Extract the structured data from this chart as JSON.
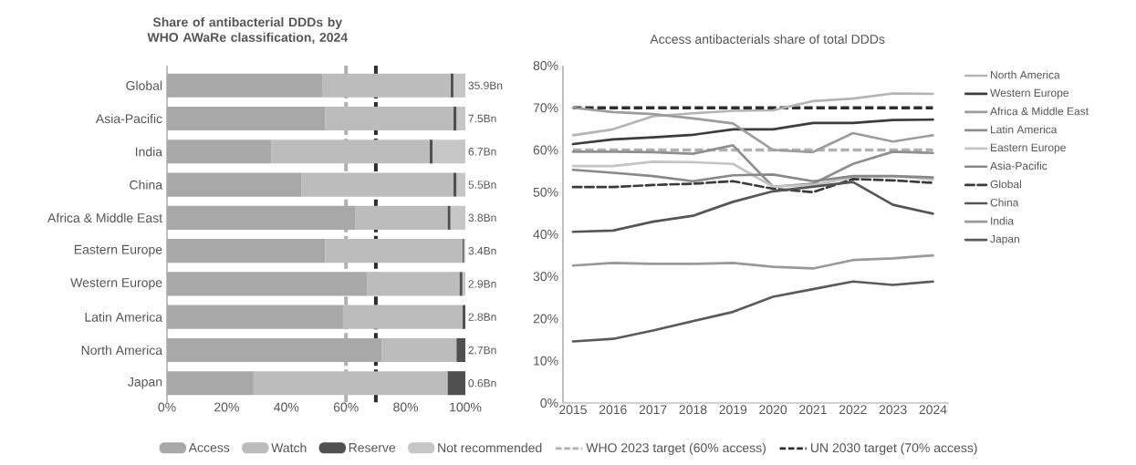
{
  "chart_data": [
    {
      "type": "bar",
      "orientation": "horizontal",
      "stacked": true,
      "title": "Share of antibacterial DDDs by WHO AWaRe classification, 2024",
      "categories": [
        "Global",
        "Asia-Pacific",
        "India",
        "China",
        "Africa & Middle East",
        "Eastern Europe",
        "Western Europe",
        "Latin America",
        "North America",
        "Japan"
      ],
      "series": [
        {
          "name": "Access",
          "color": "#a8a8a8",
          "values": [
            52,
            53,
            35,
            45,
            63,
            53,
            67,
            59,
            72,
            29
          ]
        },
        {
          "name": "Watch",
          "color": "#bcbcbc",
          "values": [
            43,
            43,
            53,
            51,
            31,
            46,
            31,
            40,
            25,
            65
          ]
        },
        {
          "name": "Reserve",
          "color": "#505050",
          "values": [
            1,
            1,
            1,
            1,
            1,
            0.5,
            1,
            1,
            3,
            6
          ]
        },
        {
          "name": "Not recommended",
          "color": "#c6c6c6",
          "values": [
            4,
            3,
            11,
            3,
            5,
            0.5,
            1,
            0,
            0,
            0
          ]
        }
      ],
      "annotations": [
        "35.9Bn",
        "7.5Bn",
        "6.7Bn",
        "5.5Bn",
        "3.8Bn",
        "3.4Bn",
        "2.9Bn",
        "2.8Bn",
        "2.7Bn",
        "0.6Bn"
      ],
      "xlim": [
        0,
        100
      ],
      "xticks": [
        {
          "value": 0,
          "label": "0%"
        },
        {
          "value": 20,
          "label": "20%"
        },
        {
          "value": 40,
          "label": "40%"
        },
        {
          "value": 60,
          "label": "60%"
        },
        {
          "value": 80,
          "label": "80%"
        },
        {
          "value": 100,
          "label": "100%"
        }
      ],
      "ref_lines": [
        {
          "axis": "x",
          "value": 60,
          "label": "WHO 2023 target (60% access)",
          "color": "#b0b0b0",
          "line_style": "dashed"
        },
        {
          "axis": "x",
          "value": 70,
          "label": "UN 2030 target (70% access)",
          "color": "#2e2e2e",
          "line_style": "dashed"
        }
      ],
      "legend": "bottom"
    },
    {
      "type": "line",
      "title": "Access antibacterials share of total DDDs",
      "x": [
        2015,
        2016,
        2017,
        2018,
        2019,
        2020,
        2021,
        2022,
        2023,
        2024
      ],
      "series": [
        {
          "name": "North America",
          "color": "#b4b4b4",
          "values": [
            63.5,
            64.9,
            68,
            68.7,
            69.3,
            69.4,
            71.6,
            72.2,
            73.4,
            73.3
          ]
        },
        {
          "name": "Western Europe",
          "color": "#3c3c3c",
          "values": [
            61.4,
            62.5,
            63,
            63.6,
            64.9,
            64.9,
            66.4,
            66.4,
            67.1,
            67.2
          ]
        },
        {
          "name": "Africa & Middle East",
          "color": "#9c9c9c",
          "values": [
            70,
            69,
            68.5,
            67.5,
            66.3,
            60,
            59.5,
            64,
            62,
            63.5
          ]
        },
        {
          "name": "Latin America",
          "color": "#8e8e8e",
          "values": [
            59.6,
            59.6,
            59.5,
            59.1,
            61.1,
            51.3,
            52,
            56.7,
            59.6,
            59.3
          ]
        },
        {
          "name": "Eastern Europe",
          "color": "#c4c4c4",
          "values": [
            56.2,
            56.2,
            57.2,
            57.1,
            56.7,
            51.3,
            51.7,
            53.5,
            53.8,
            53
          ]
        },
        {
          "name": "Asia-Pacific",
          "color": "#888888",
          "values": [
            55.3,
            54.6,
            53.8,
            52.6,
            54,
            54.2,
            52.6,
            53.8,
            53.8,
            53.5
          ]
        },
        {
          "name": "Global",
          "color": "#3a3a3a",
          "line_style": "dashed",
          "values": [
            51.2,
            51.2,
            51.7,
            52,
            52.6,
            50.8,
            50,
            53.1,
            52.8,
            52.2
          ]
        },
        {
          "name": "China",
          "color": "#555555",
          "values": [
            40.6,
            40.9,
            43,
            44.4,
            47.7,
            50.2,
            51.3,
            52.4,
            47,
            44.9
          ]
        },
        {
          "name": "India",
          "color": "#999999",
          "values": [
            32.6,
            33.2,
            33,
            33,
            33.2,
            32.3,
            31.9,
            33.9,
            34.3,
            35
          ]
        },
        {
          "name": "Japan",
          "color": "#5a5a5a",
          "values": [
            14.6,
            15.2,
            17.2,
            19.4,
            21.6,
            25.2,
            27,
            28.8,
            28,
            28.8
          ]
        }
      ],
      "xlim": [
        2014.75,
        2024.4
      ],
      "xticks": [
        2015,
        2016,
        2017,
        2018,
        2019,
        2020,
        2021,
        2022,
        2023,
        2024
      ],
      "ylim": [
        0,
        80
      ],
      "yticks": [
        {
          "value": 0,
          "label": "0%"
        },
        {
          "value": 10,
          "label": "10%"
        },
        {
          "value": 20,
          "label": "20%"
        },
        {
          "value": 30,
          "label": "30%"
        },
        {
          "value": 40,
          "label": "40%"
        },
        {
          "value": 50,
          "label": "50%"
        },
        {
          "value": 60,
          "label": "60%"
        },
        {
          "value": 70,
          "label": "70%"
        },
        {
          "value": 80,
          "label": "80%"
        }
      ],
      "ref_lines": [
        {
          "axis": "y",
          "value": 60,
          "color": "#b0b0b0",
          "line_style": "dashed"
        },
        {
          "axis": "y",
          "value": 70,
          "color": "#2e2e2e",
          "line_style": "dashed"
        }
      ],
      "marker": "none",
      "legend": "right"
    }
  ]
}
